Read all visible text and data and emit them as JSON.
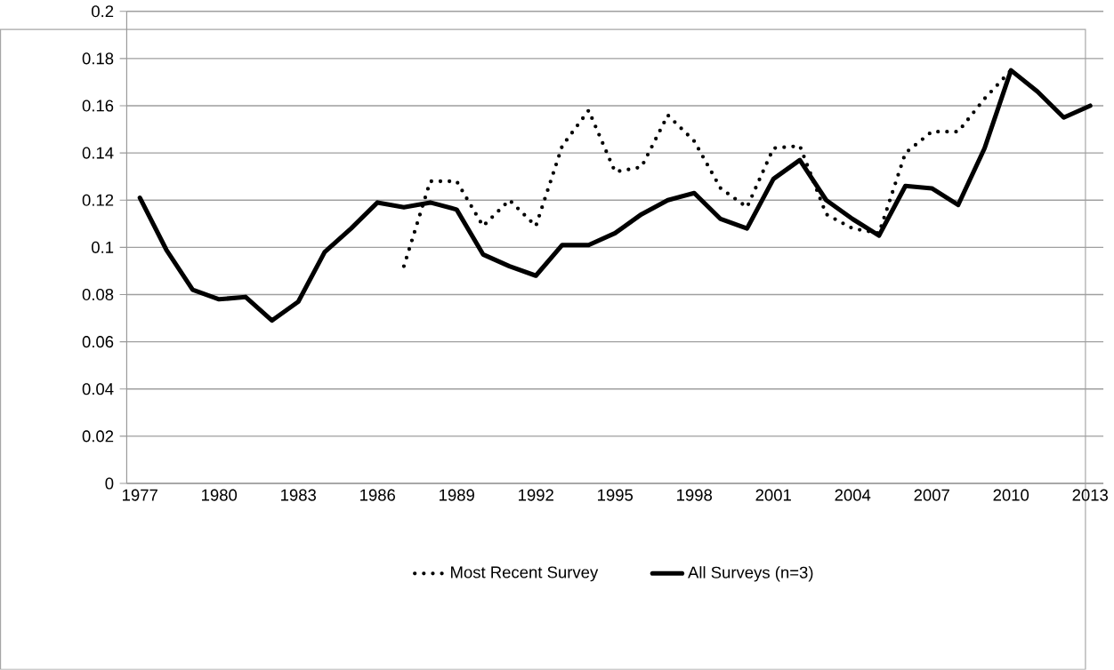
{
  "chart_data": {
    "type": "line",
    "categories": [
      "1977",
      null,
      null,
      "1980",
      null,
      null,
      "1983",
      null,
      null,
      "1986",
      null,
      null,
      "1989",
      null,
      null,
      "1992",
      null,
      null,
      "1995",
      null,
      null,
      "1998",
      null,
      null,
      "2001",
      null,
      null,
      "2004",
      null,
      null,
      "2007",
      null,
      null,
      "2010",
      null,
      null,
      "2013"
    ],
    "series": [
      {
        "name": "Most Recent Survey",
        "color": "#000000",
        "line_style": "dotted",
        "values": [
          null,
          null,
          null,
          null,
          null,
          null,
          null,
          null,
          null,
          null,
          0.092,
          0.128,
          0.128,
          0.109,
          0.12,
          0.109,
          0.143,
          0.158,
          0.132,
          0.134,
          0.156,
          0.145,
          0.125,
          0.117,
          0.142,
          0.143,
          0.114,
          0.108,
          0.106,
          0.14,
          0.149,
          0.149,
          0.163,
          0.175,
          null,
          null,
          null
        ]
      },
      {
        "name": "All Surveys (n=3)",
        "color": "#000000",
        "line_style": "solid",
        "values": [
          0.121,
          0.099,
          0.082,
          0.078,
          0.079,
          0.069,
          0.077,
          0.098,
          0.108,
          0.119,
          0.117,
          0.119,
          0.116,
          0.097,
          0.092,
          0.088,
          0.101,
          0.101,
          0.106,
          0.114,
          0.12,
          0.123,
          0.112,
          0.108,
          0.129,
          0.137,
          0.12,
          0.112,
          0.105,
          0.126,
          0.125,
          0.118,
          0.142,
          0.175,
          0.166,
          0.155,
          0.16
        ]
      }
    ],
    "ylim": [
      0,
      0.2
    ],
    "yticks": [
      0,
      0.02,
      0.04,
      0.06,
      0.08,
      0.1,
      0.12,
      0.14,
      0.16,
      0.18,
      0.2
    ],
    "grid": "y",
    "legend": "bottom"
  }
}
